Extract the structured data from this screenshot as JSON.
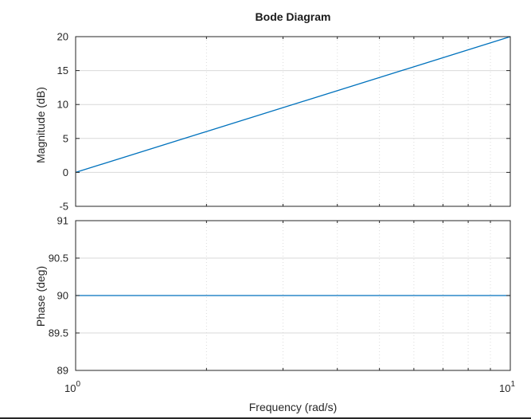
{
  "chart_data": [
    {
      "type": "line",
      "title": "Bode Diagram",
      "xlabel": "Frequency  (rad/s)",
      "ylabel": "Magnitude (dB)",
      "xscale": "log",
      "xlim": [
        1,
        10
      ],
      "ylim": [
        -5,
        20
      ],
      "yticks": [
        "-5",
        "0",
        "5",
        "10",
        "15",
        "20"
      ],
      "grid": "on",
      "series": [
        {
          "x": [
            1,
            10
          ],
          "y": [
            0,
            20
          ],
          "color": "#0072bd"
        }
      ]
    },
    {
      "type": "line",
      "xlabel": "Frequency  (rad/s)",
      "ylabel": "Phase (deg)",
      "xscale": "log",
      "xlim": [
        1,
        10
      ],
      "ylim": [
        89,
        91
      ],
      "yticks": [
        "89",
        "89.5",
        "90",
        "90.5",
        "91"
      ],
      "xticks": [
        {
          "base": "10",
          "exp": "0"
        },
        {
          "base": "10",
          "exp": "1"
        }
      ],
      "grid": "on",
      "series": [
        {
          "x": [
            1,
            10
          ],
          "y": [
            90,
            90
          ],
          "color": "#0072bd"
        }
      ]
    }
  ]
}
